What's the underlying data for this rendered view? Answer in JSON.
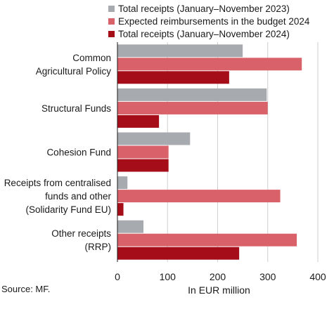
{
  "chart_data": {
    "type": "bar",
    "orientation": "horizontal",
    "categories": [
      [
        "Common",
        "Agricultural Policy"
      ],
      [
        "Structural Funds"
      ],
      [
        "Cohesion Fund"
      ],
      [
        "Receipts from centralised",
        "funds and other",
        "(Solidarity Fund EU)"
      ],
      [
        "Other receipts",
        "(RRP)"
      ]
    ],
    "series": [
      {
        "name": "Total receipts (January–November 2023)",
        "color": "#a7abb0",
        "values": [
          250,
          298,
          145,
          20,
          52
        ]
      },
      {
        "name": "Expected reimbursements in the budget 2024",
        "color": "#d9626a",
        "values": [
          368,
          300,
          102,
          325,
          358
        ]
      },
      {
        "name": "Total receipts (January–November 2024)",
        "color": "#a50d18",
        "values": [
          223,
          83,
          102,
          12,
          243
        ]
      }
    ],
    "xlabel": "In EUR million",
    "xlim": [
      0,
      400
    ],
    "xticks": [
      0,
      100,
      200,
      300,
      400
    ],
    "grid": true,
    "legend": "top"
  },
  "source": "Source: MF."
}
